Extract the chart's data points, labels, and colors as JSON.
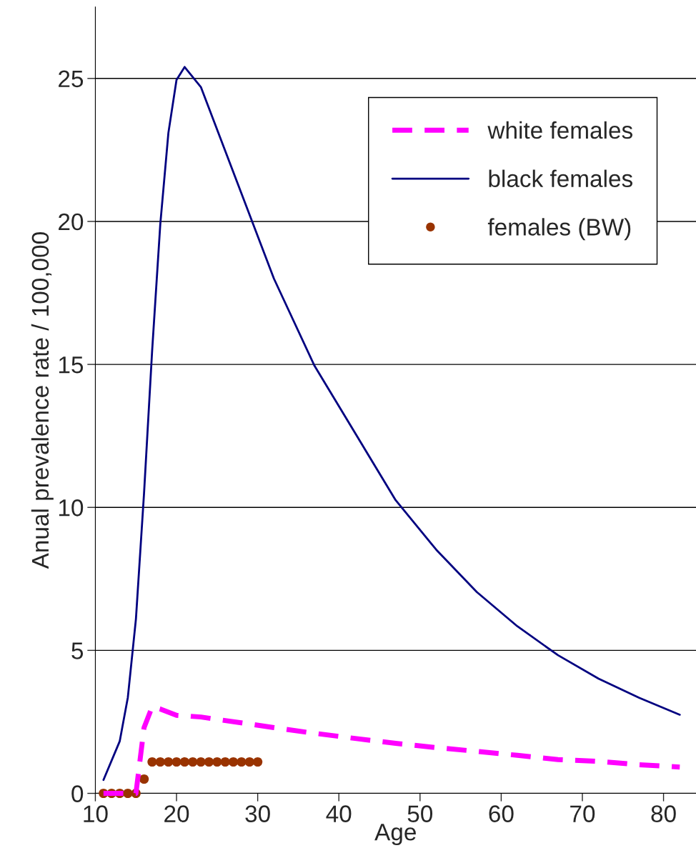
{
  "chart_data": {
    "type": "line",
    "xlabel": "Age",
    "ylabel": "Anual prevalence rate / 100,000",
    "xlim": [
      10,
      84
    ],
    "xticks": [
      10,
      20,
      30,
      40,
      50,
      60,
      70,
      80
    ],
    "ylim": [
      0,
      27.5
    ],
    "yticks": [
      0,
      5,
      10,
      15,
      20,
      25
    ],
    "grid": "y",
    "legend": "top right",
    "series": [
      {
        "name": "white females",
        "color": "#ff00ff",
        "line_style": "dashed",
        "x": [
          11,
          12,
          13,
          14,
          15,
          16,
          17,
          18,
          20,
          23,
          32,
          37,
          42,
          47,
          52,
          57,
          62,
          67,
          72,
          77,
          82
        ],
        "values": [
          0,
          0,
          0,
          0,
          0,
          2.3,
          3.03,
          2.95,
          2.73,
          2.67,
          2.3,
          2.1,
          1.92,
          1.75,
          1.6,
          1.47,
          1.33,
          1.18,
          1.12,
          1.0,
          0.92
        ]
      },
      {
        "name": "black females",
        "color": "#000080",
        "line_style": "solid",
        "x": [
          11,
          13,
          14,
          15,
          16,
          17,
          18,
          19,
          20,
          21,
          23,
          32,
          37,
          47,
          52,
          57,
          62,
          67,
          72,
          77,
          82
        ],
        "values": [
          0.47,
          1.82,
          3.35,
          6.1,
          10.5,
          15.5,
          19.9,
          23.1,
          24.95,
          25.4,
          24.7,
          18.0,
          14.95,
          10.25,
          8.52,
          7.04,
          5.84,
          4.83,
          4.01,
          3.34,
          2.75
        ]
      },
      {
        "name": "females (BW)",
        "type": "scatter",
        "color": "#993300",
        "marker": "circle",
        "x": [
          11,
          12,
          13,
          14,
          15,
          16,
          17,
          18,
          19,
          20,
          21,
          22,
          23,
          24,
          25,
          26,
          27,
          28,
          29,
          30
        ],
        "values": [
          0,
          0,
          0,
          0,
          0,
          0.5,
          1.1,
          1.1,
          1.1,
          1.1,
          1.1,
          1.1,
          1.1,
          1.1,
          1.1,
          1.1,
          1.1,
          1.1,
          1.1,
          1.1
        ]
      }
    ]
  }
}
